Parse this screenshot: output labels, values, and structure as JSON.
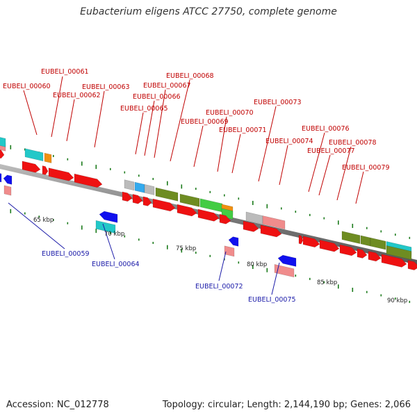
{
  "title": "Eubacterium eligens ATCC 27750, complete genome",
  "accession": "Accession: NC_012778",
  "topology": "Topology: circular; Length: 2,144,190 bp; Genes: 2,066",
  "colors": {
    "forward_label": "#c00000",
    "reverse_label": "#1a1aa8",
    "cds": "#ee1111",
    "pink": "#f08c8c",
    "reverse_cds": "#1010ee",
    "cyan": "#22c8c8",
    "olive": "#6e8c22",
    "green": "#44cc44",
    "orange": "#f09010",
    "grey": "#bbbbbb",
    "sky": "#33aaee",
    "backbone": "#888888",
    "tick": "#1a7a1a"
  },
  "kbp_labels": [
    "65 kbp",
    "70 kbp",
    "75 kbp",
    "80 kbp",
    "85 kbp",
    "90 kbp"
  ],
  "forward_labels": [
    "EUBELI_00060",
    "EUBELI_00061",
    "EUBELI_00062",
    "EUBELI_00063",
    "EUBELI_00065",
    "EUBELI_00066",
    "EUBELI_00067",
    "EUBELI_00068",
    "EUBELI_00069",
    "EUBELI_00070",
    "EUBELI_00071",
    "EUBELI_00073",
    "EUBELI_00074",
    "EUBELI_00076",
    "EUBELI_00077",
    "EUBELI_00078",
    "EUBELI_00079"
  ],
  "reverse_labels": [
    "EUBELI_00059",
    "EUBELI_00064",
    "EUBELI_00072",
    "EUBELI_00075"
  ]
}
